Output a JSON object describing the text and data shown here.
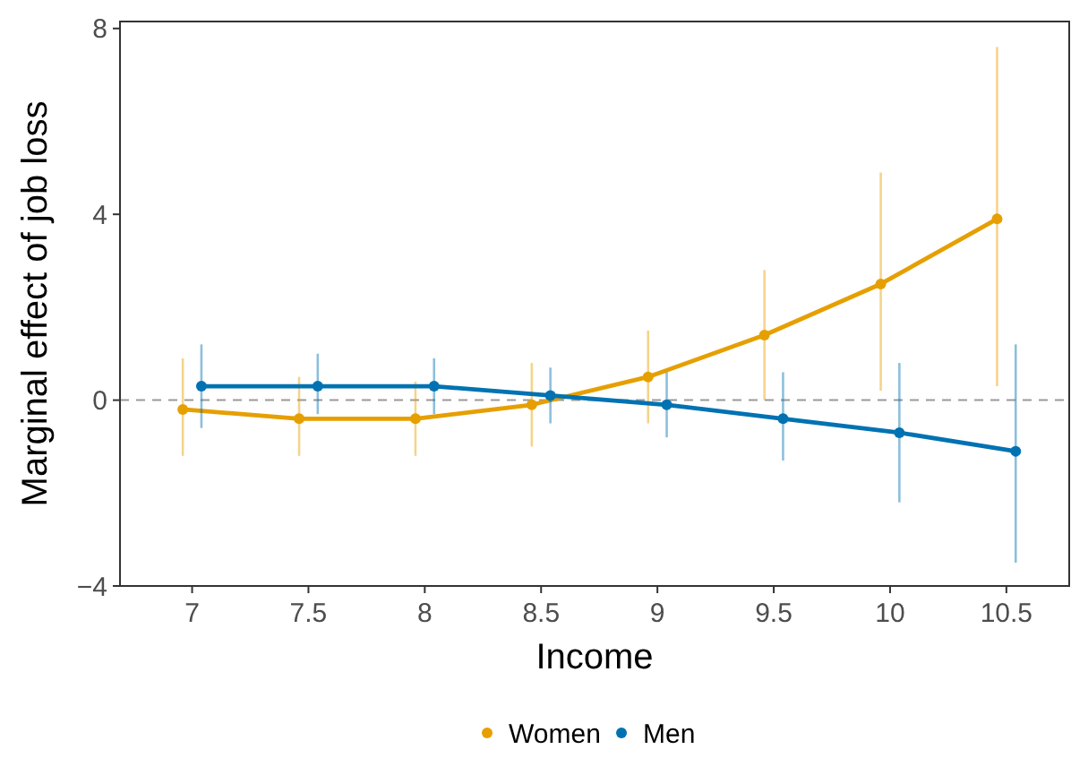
{
  "chart_data": {
    "type": "line",
    "xlabel": "Income",
    "ylabel": "Marginal effect of job loss",
    "xlim": [
      6.69,
      10.77
    ],
    "ylim": [
      -4,
      8.15
    ],
    "xticks": [
      7,
      7.5,
      8,
      8.5,
      9,
      9.5,
      10,
      10.5
    ],
    "yticks": [
      {
        "value": -4,
        "label": "−4"
      },
      0,
      4,
      8
    ],
    "grid": false,
    "legend": "bottom",
    "marker": "circle",
    "line_style": "solid",
    "ref_lines": [
      {
        "axis": "y",
        "value": 0,
        "color": "#999999",
        "line_style": "dashed"
      }
    ],
    "series": [
      {
        "name": "Women",
        "color": "#e69f00",
        "x": [
          6.96,
          7.46,
          7.96,
          8.46,
          8.96,
          9.46,
          9.96,
          10.46
        ],
        "values": [
          -0.2,
          -0.4,
          -0.4,
          -0.1,
          0.5,
          1.4,
          2.5,
          3.9
        ],
        "errors": [
          [
            -1.2,
            0.9
          ],
          [
            -1.2,
            0.5
          ],
          [
            -1.2,
            0.4
          ],
          [
            -1.0,
            0.8
          ],
          [
            -0.5,
            1.5
          ],
          [
            0.0,
            2.8
          ],
          [
            0.2,
            4.9
          ],
          [
            0.3,
            7.6
          ]
        ]
      },
      {
        "name": "Men",
        "color": "#0072b2",
        "x": [
          7.04,
          7.54,
          8.04,
          8.54,
          9.04,
          9.54,
          10.04,
          10.54
        ],
        "values": [
          0.3,
          0.3,
          0.3,
          0.1,
          -0.1,
          -0.4,
          -0.7,
          -1.1
        ],
        "errors": [
          [
            -0.6,
            1.2
          ],
          [
            -0.3,
            1.0
          ],
          [
            -0.3,
            0.9
          ],
          [
            -0.5,
            0.7
          ],
          [
            -0.8,
            0.6
          ],
          [
            -1.3,
            0.6
          ],
          [
            -2.2,
            0.8
          ],
          [
            -3.5,
            1.2
          ]
        ]
      }
    ]
  }
}
